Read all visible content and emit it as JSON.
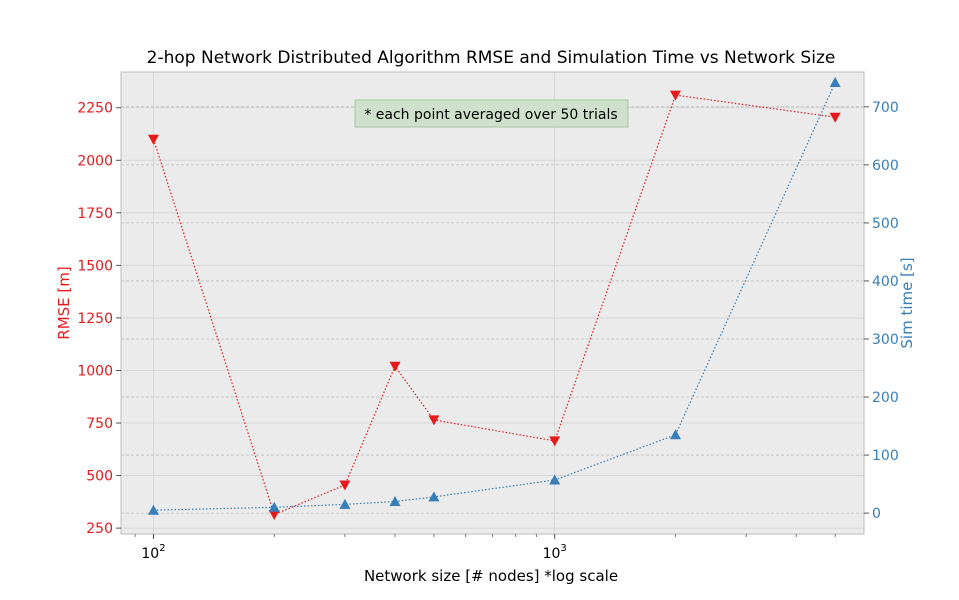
{
  "chart_data": {
    "type": "line",
    "title": "2-hop Network Distributed Algorithm RMSE and Simulation Time vs Network Size",
    "xlabel": "Network size [# nodes] *log scale",
    "x_scale": "log",
    "xlim": [
      83,
      5900
    ],
    "x": [
      100,
      200,
      300,
      400,
      500,
      1000,
      2000,
      5000
    ],
    "x_ticks": [
      {
        "value": 100,
        "base": "10",
        "exp": "2"
      },
      {
        "value": 1000,
        "base": "10",
        "exp": "3"
      }
    ],
    "y_left": {
      "label": "RMSE [m]",
      "ylim": [
        222,
        2420
      ],
      "ticks": [
        "250",
        "500",
        "750",
        "1000",
        "1250",
        "1500",
        "1750",
        "2000",
        "2250"
      ],
      "color": "#e41a1c"
    },
    "y_right": {
      "label": "Sim time [s]",
      "ylim": [
        -36,
        760
      ],
      "ticks": [
        "0",
        "100",
        "200",
        "300",
        "400",
        "500",
        "600",
        "700"
      ],
      "color": "#377eb8"
    },
    "series": [
      {
        "axis": "left",
        "marker": "triangle-down",
        "color": "#e41a1c",
        "values": [
          2100,
          315,
          455,
          1020,
          765,
          665,
          2310,
          2205
        ]
      },
      {
        "axis": "right",
        "marker": "triangle-up",
        "color": "#377eb8",
        "values": [
          5,
          10,
          15,
          20,
          28,
          57,
          135,
          742
        ]
      }
    ],
    "annotation": "* each point averaged over 50 trials",
    "grid": true,
    "legend": "none"
  }
}
